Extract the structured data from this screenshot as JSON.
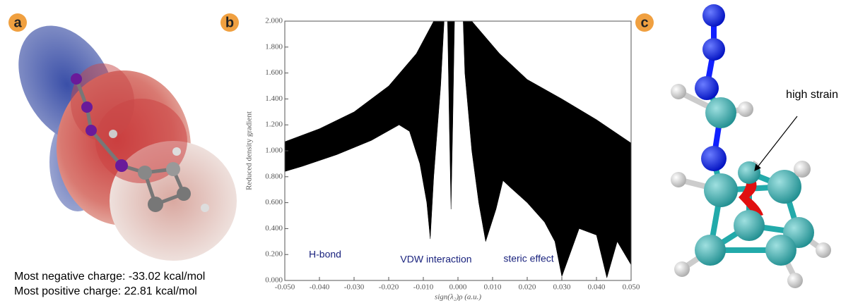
{
  "panel_labels": [
    "a",
    "b",
    "c"
  ],
  "esp": {
    "notes": [
      "Most negative charge: -33.02 kcal/mol",
      "Most positive charge: 22.81 kcal/mol"
    ]
  },
  "strain": {
    "annotation": "high strain"
  },
  "chart_data": {
    "type": "area",
    "x_label": "sign(λ₂)ρ (a.u.)",
    "y_label": "Reduced density gradient",
    "annotations": [
      "H-bond",
      "VDW interaction",
      "steric effect"
    ],
    "series": [
      {
        "color": "#000000",
        "x": [
          -0.05,
          -0.05,
          -0.04,
          -0.03,
          -0.02,
          -0.012,
          -0.007,
          -0.004,
          -0.005,
          -0.007,
          -0.008,
          -0.009,
          -0.011,
          -0.014,
          -0.017,
          -0.025,
          -0.035,
          -0.045
        ],
        "values": [
          0.84,
          1.07,
          1.17,
          1.3,
          1.5,
          1.75,
          2.0,
          2.0,
          1.5,
          0.8,
          0.32,
          0.6,
          0.9,
          1.15,
          1.2,
          1.08,
          0.97,
          0.88
        ]
      },
      {
        "color": "#000000",
        "x": [
          -0.003,
          -0.001,
          -0.0015,
          -0.002,
          -0.0025
        ],
        "values": [
          2.0,
          2.0,
          1.2,
          0.55,
          1.2
        ]
      },
      {
        "color": "#000000",
        "x": [
          0.0015,
          0.004,
          0.012,
          0.02,
          0.03,
          0.04,
          0.05,
          0.05,
          0.046,
          0.043,
          0.04,
          0.035,
          0.03,
          0.028,
          0.025,
          0.02,
          0.015,
          0.013,
          0.011,
          0.008,
          0.006,
          0.004,
          0.002
        ],
        "values": [
          2.0,
          2.0,
          1.75,
          1.55,
          1.4,
          1.24,
          1.06,
          0.12,
          0.3,
          0.02,
          0.35,
          0.4,
          0.03,
          0.3,
          0.45,
          0.6,
          0.72,
          0.77,
          0.55,
          0.3,
          0.6,
          1.0,
          1.6
        ]
      }
    ],
    "xlim": [
      -0.05,
      0.05
    ],
    "xticks": [
      {
        "value": -0.05,
        "label": "-0.050"
      },
      {
        "value": -0.04,
        "label": "-0.040"
      },
      {
        "value": -0.03,
        "label": "-0.030"
      },
      {
        "value": -0.02,
        "label": "-0.020"
      },
      {
        "value": -0.01,
        "label": "-0.010"
      },
      {
        "value": 0,
        "label": "0.000"
      },
      {
        "value": 0.01,
        "label": "0.010"
      },
      {
        "value": 0.02,
        "label": "0.020"
      },
      {
        "value": 0.03,
        "label": "0.030"
      },
      {
        "value": 0.04,
        "label": "0.040"
      },
      {
        "value": 0.05,
        "label": "0.050"
      }
    ],
    "ylim": [
      0,
      2
    ],
    "yticks": [
      {
        "value": 0,
        "label": "0.000"
      },
      {
        "value": 0.2,
        "label": "0.200"
      },
      {
        "value": 0.4,
        "label": "0.400"
      },
      {
        "value": 0.6,
        "label": "0.600"
      },
      {
        "value": 0.8,
        "label": "0.800"
      },
      {
        "value": 1,
        "label": "1.000"
      },
      {
        "value": 1.2,
        "label": "1.200"
      },
      {
        "value": 1.4,
        "label": "1.400"
      },
      {
        "value": 1.6,
        "label": "1.600"
      },
      {
        "value": 1.8,
        "label": "1.800"
      },
      {
        "value": 2,
        "label": "2.000"
      }
    ]
  }
}
